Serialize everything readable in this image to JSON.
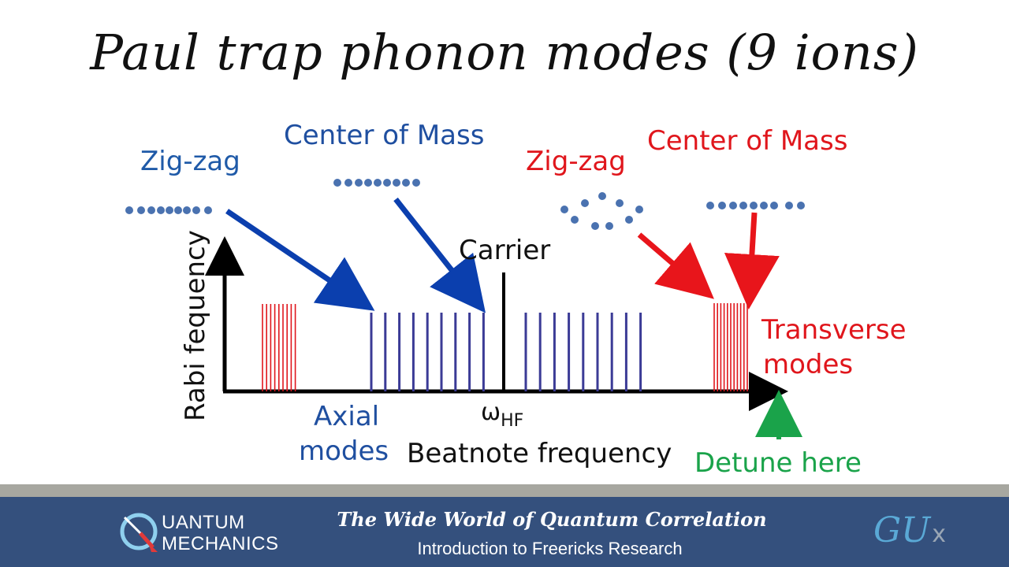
{
  "title": "Paul trap phonon modes (9 ions)",
  "labels": {
    "zigzag_axial": "Zig-zag",
    "com_axial": "Center of Mass",
    "zigzag_transverse": "Zig-zag",
    "com_transverse": "Center of Mass",
    "carrier": "Carrier",
    "y_axis": "Rabi fequency",
    "omega_hf_main": "ω",
    "omega_hf_sub": "HF",
    "axial_line1": "Axial",
    "axial_line2": "modes",
    "x_axis": "Beatnote frequency",
    "transverse_line1": "Transverse",
    "transverse_line2": "modes",
    "detune": "Detune here"
  },
  "colors": {
    "axial_blue": "#1f4fa0",
    "bar_blue": "#3b3b96",
    "transverse_red": "#e0161c",
    "detune_green": "#1aa34a",
    "ion_dot": "#4a72b0"
  },
  "footer": {
    "logo_line1": "UANTUM",
    "logo_line2": "MECHANICS",
    "course_title": "The Wide World of Quantum Correlation",
    "course_subtitle": "Introduction to Freericks Research",
    "brand_main": "GU",
    "brand_x": "x"
  }
}
